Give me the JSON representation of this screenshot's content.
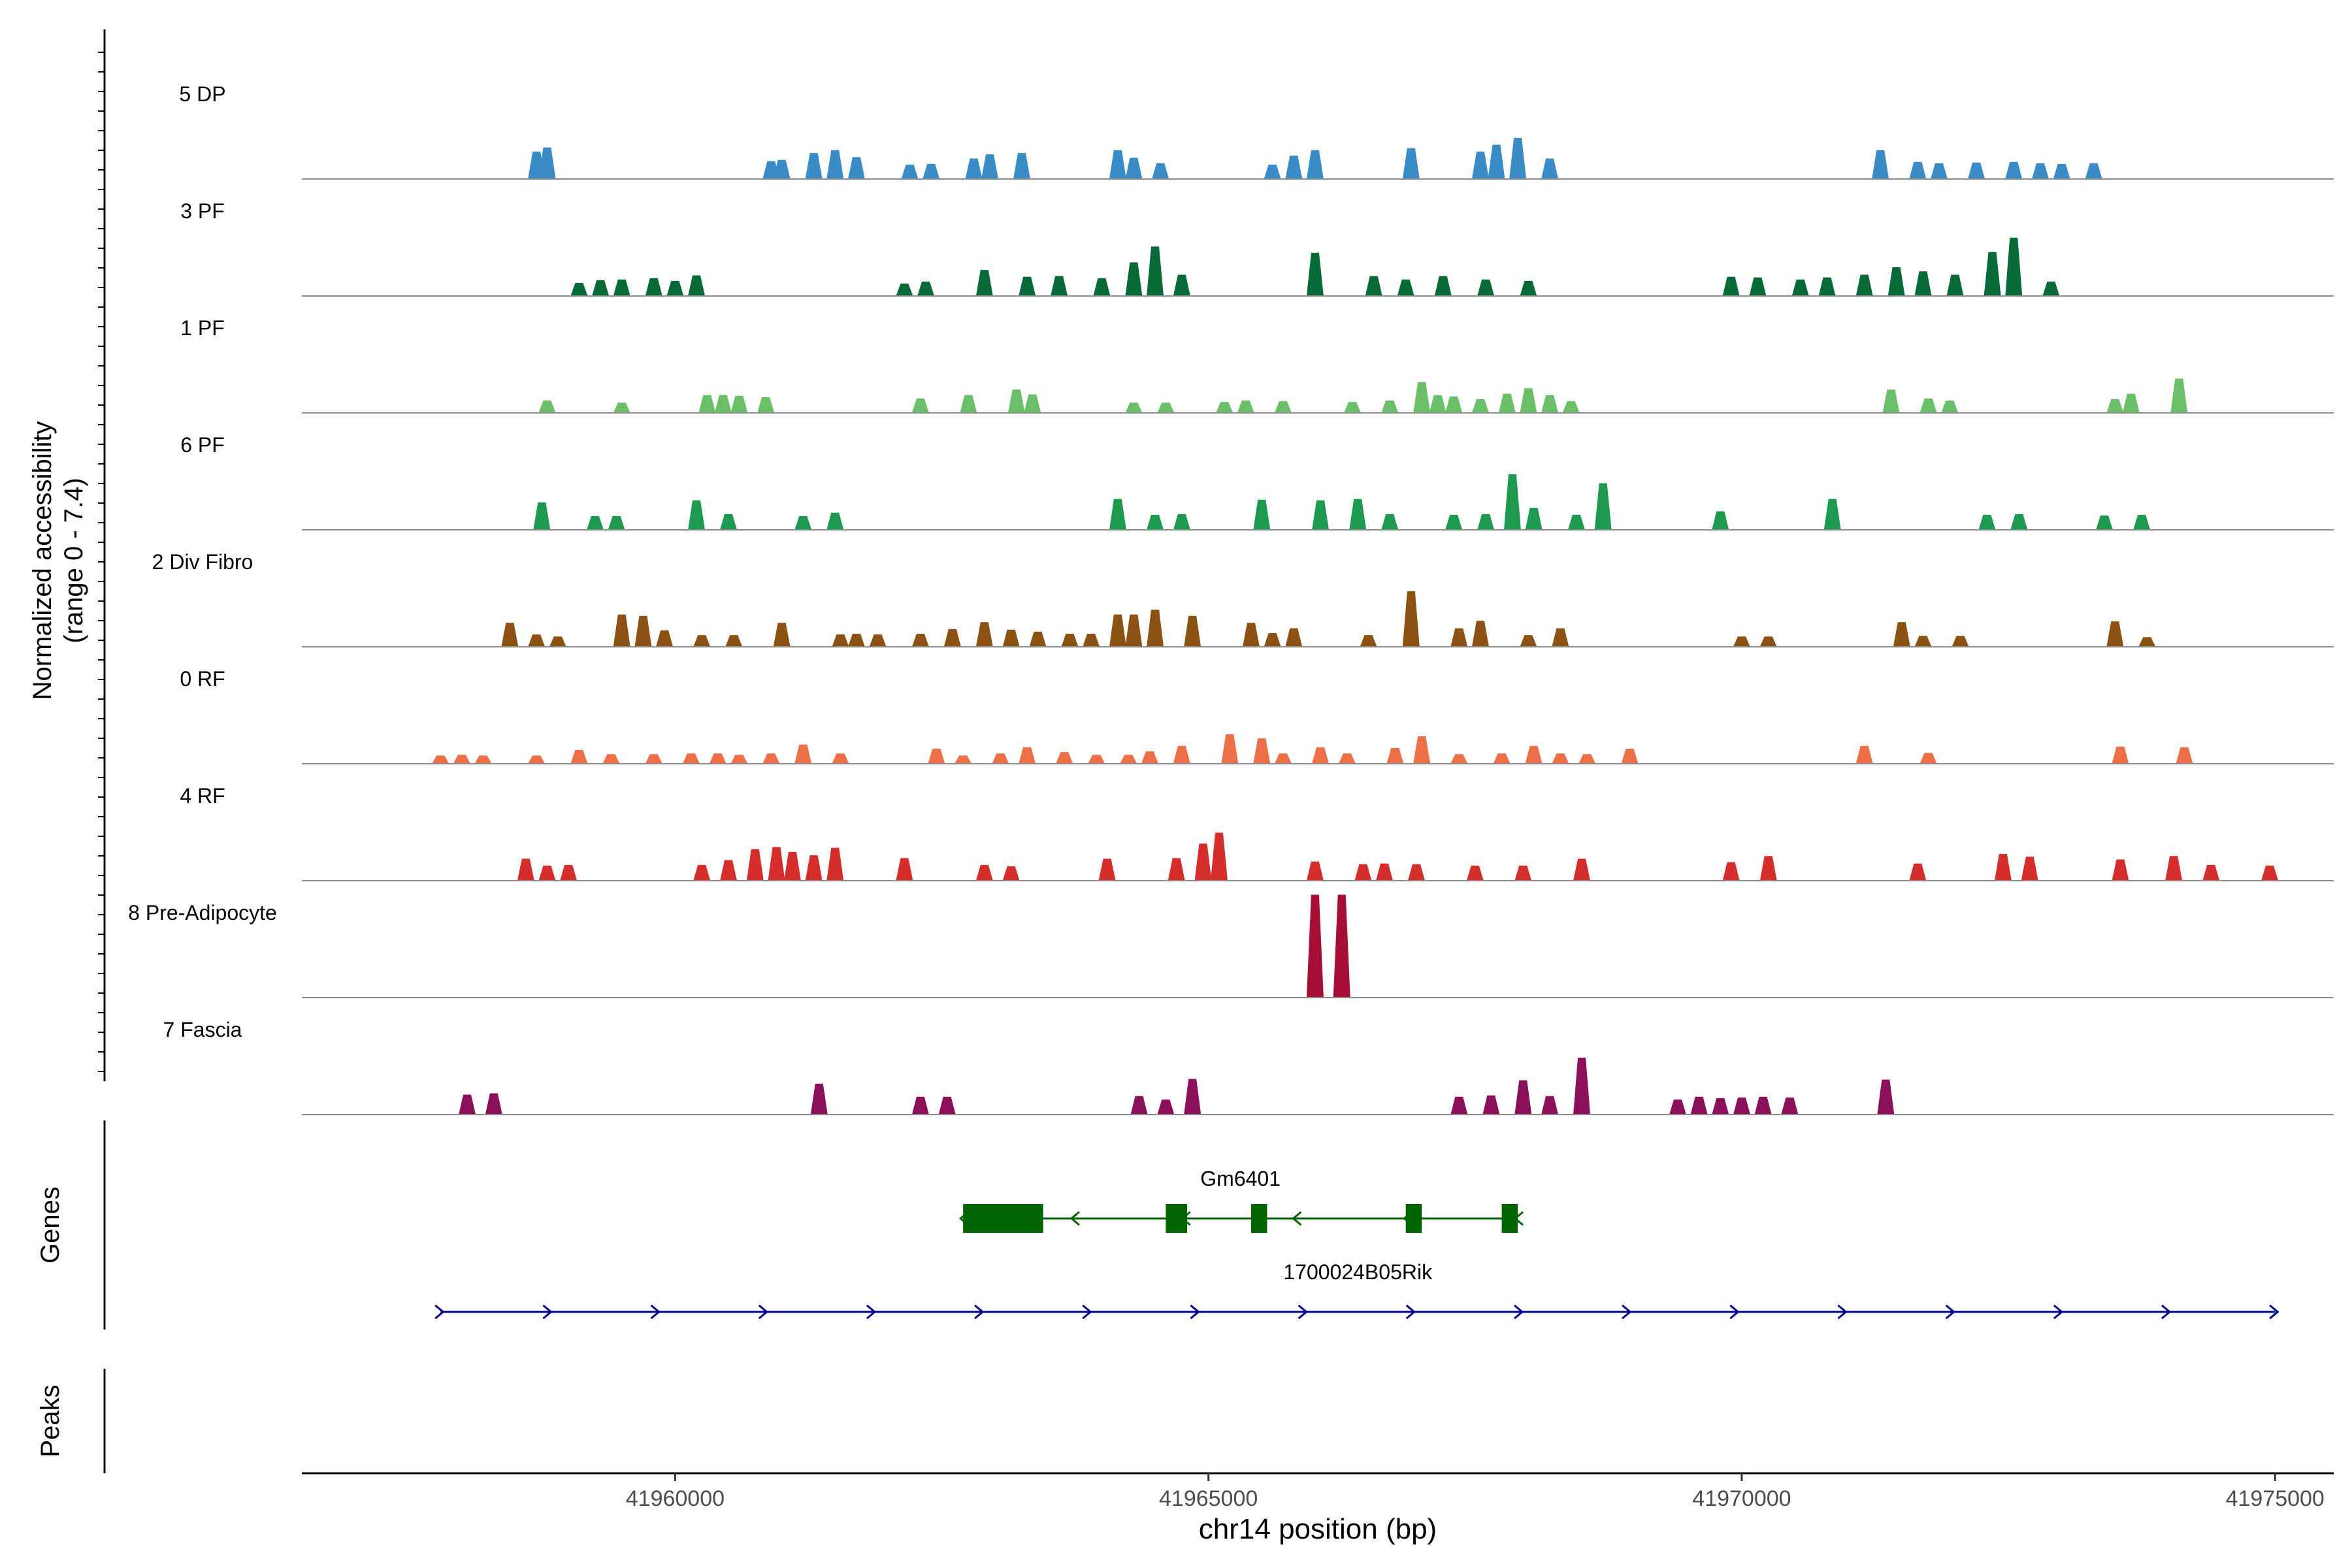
{
  "chart_data": {
    "type": "area",
    "title": "",
    "ylabel_line1": "Normalized accessibility",
    "ylabel_line2": "(range 0 - 7.4)",
    "y_range": [
      0,
      7.4
    ],
    "xlabel": "chr14 position (bp)",
    "x_range": [
      41956500,
      41975550
    ],
    "x_ticks": [
      41960000,
      41965000,
      41970000,
      41975000
    ],
    "x_tick_labels": [
      "41960000",
      "41965000",
      "41970000",
      "41975000"
    ],
    "tracks": [
      {
        "name": "5 DP",
        "color": "#3a8cc6",
        "peaks": [
          [
            41958700,
            4
          ],
          [
            41958800,
            4.6
          ],
          [
            41960900,
            2.6
          ],
          [
            41961000,
            2.8
          ],
          [
            41961300,
            3.8
          ],
          [
            41961500,
            4.2
          ],
          [
            41961700,
            3.2
          ],
          [
            41962200,
            2.1
          ],
          [
            41962400,
            2.2
          ],
          [
            41962800,
            3
          ],
          [
            41962950,
            3.6
          ],
          [
            41963250,
            3.8
          ],
          [
            41964150,
            4.2
          ],
          [
            41964300,
            3.1
          ],
          [
            41964550,
            2.3
          ],
          [
            41965600,
            2.1
          ],
          [
            41965800,
            3.4
          ],
          [
            41966000,
            4.2
          ],
          [
            41966900,
            4.5
          ],
          [
            41967550,
            4
          ],
          [
            41967700,
            5
          ],
          [
            41967900,
            6
          ],
          [
            41968200,
            3
          ],
          [
            41971300,
            4.2
          ],
          [
            41971650,
            2.5
          ],
          [
            41971850,
            2.3
          ],
          [
            41972200,
            2.4
          ],
          [
            41972550,
            2.5
          ],
          [
            41972800,
            2.3
          ],
          [
            41973000,
            2.2
          ],
          [
            41973300,
            2.3
          ]
        ]
      },
      {
        "name": "3 PF",
        "color": "#086a37",
        "peaks": [
          [
            41959100,
            1.9
          ],
          [
            41959300,
            2.3
          ],
          [
            41959500,
            2.4
          ],
          [
            41959800,
            2.6
          ],
          [
            41960000,
            2.2
          ],
          [
            41960200,
            3
          ],
          [
            41962150,
            1.8
          ],
          [
            41962350,
            2.1
          ],
          [
            41962900,
            3.8
          ],
          [
            41963300,
            2.8
          ],
          [
            41963600,
            2.9
          ],
          [
            41964000,
            2.6
          ],
          [
            41964300,
            4.9
          ],
          [
            41964500,
            7.2
          ],
          [
            41964750,
            3.1
          ],
          [
            41966000,
            6.3
          ],
          [
            41966550,
            2.9
          ],
          [
            41966850,
            2.4
          ],
          [
            41967200,
            2.9
          ],
          [
            41967600,
            2.4
          ],
          [
            41968000,
            2.2
          ],
          [
            41969900,
            2.8
          ],
          [
            41970150,
            2.7
          ],
          [
            41970550,
            2.4
          ],
          [
            41970800,
            2.7
          ],
          [
            41971150,
            3.1
          ],
          [
            41971450,
            4.2
          ],
          [
            41971700,
            3.6
          ],
          [
            41972000,
            3.1
          ],
          [
            41972350,
            6.4
          ],
          [
            41972550,
            8.5
          ],
          [
            41972900,
            2.1
          ]
        ]
      },
      {
        "name": "1 PF",
        "color": "#6bbf68",
        "peaks": [
          [
            41958800,
            1.8
          ],
          [
            41959500,
            1.5
          ],
          [
            41960300,
            2.6
          ],
          [
            41960450,
            2.6
          ],
          [
            41960600,
            2.5
          ],
          [
            41960850,
            2.3
          ],
          [
            41962300,
            2.1
          ],
          [
            41962750,
            2.6
          ],
          [
            41963200,
            3.4
          ],
          [
            41963350,
            2.7
          ],
          [
            41964300,
            1.5
          ],
          [
            41964600,
            1.5
          ],
          [
            41965150,
            1.6
          ],
          [
            41965350,
            1.8
          ],
          [
            41965700,
            1.7
          ],
          [
            41966350,
            1.6
          ],
          [
            41966700,
            1.8
          ],
          [
            41967000,
            4.5
          ],
          [
            41967150,
            2.6
          ],
          [
            41967300,
            2.4
          ],
          [
            41967550,
            2
          ],
          [
            41967800,
            2.8
          ],
          [
            41968000,
            3.6
          ],
          [
            41968200,
            2.6
          ],
          [
            41968400,
            1.7
          ],
          [
            41971400,
            3.4
          ],
          [
            41971750,
            2.1
          ],
          [
            41971950,
            1.8
          ],
          [
            41973500,
            2
          ],
          [
            41973650,
            2.8
          ],
          [
            41974100,
            5
          ]
        ]
      },
      {
        "name": "6 PF",
        "color": "#1e9a50",
        "peaks": [
          [
            41958750,
            4
          ],
          [
            41959250,
            2
          ],
          [
            41959450,
            2
          ],
          [
            41960200,
            4.3
          ],
          [
            41960500,
            2.3
          ],
          [
            41961200,
            2
          ],
          [
            41961500,
            2.5
          ],
          [
            41964150,
            4.5
          ],
          [
            41964500,
            2.2
          ],
          [
            41964750,
            2.3
          ],
          [
            41965500,
            4.4
          ],
          [
            41966050,
            4.3
          ],
          [
            41966400,
            4.5
          ],
          [
            41966700,
            2.3
          ],
          [
            41967300,
            2.2
          ],
          [
            41967600,
            2.3
          ],
          [
            41967850,
            8.1
          ],
          [
            41968050,
            3.2
          ],
          [
            41968450,
            2.2
          ],
          [
            41968700,
            6.8
          ],
          [
            41969800,
            2.7
          ],
          [
            41970850,
            4.5
          ],
          [
            41972300,
            2.2
          ],
          [
            41972600,
            2.3
          ],
          [
            41973400,
            2.1
          ],
          [
            41973750,
            2.2
          ]
        ]
      },
      {
        "name": "2 Div Fibro",
        "color": "#8b5213",
        "peaks": [
          [
            41958450,
            3.5
          ],
          [
            41958700,
            1.8
          ],
          [
            41958900,
            1.5
          ],
          [
            41959500,
            4.7
          ],
          [
            41959700,
            4.5
          ],
          [
            41959900,
            2.4
          ],
          [
            41960250,
            1.7
          ],
          [
            41960550,
            1.7
          ],
          [
            41961000,
            3.5
          ],
          [
            41961550,
            1.8
          ],
          [
            41961700,
            1.9
          ],
          [
            41961900,
            1.8
          ],
          [
            41962300,
            1.9
          ],
          [
            41962600,
            2.6
          ],
          [
            41962900,
            3.6
          ],
          [
            41963150,
            2.5
          ],
          [
            41963400,
            2.2
          ],
          [
            41963700,
            1.9
          ],
          [
            41963900,
            1.9
          ],
          [
            41964150,
            4.7
          ],
          [
            41964300,
            4.7
          ],
          [
            41964500,
            5.4
          ],
          [
            41964850,
            4.5
          ],
          [
            41965400,
            3.5
          ],
          [
            41965600,
            2
          ],
          [
            41965800,
            2.7
          ],
          [
            41966500,
            1.7
          ],
          [
            41966900,
            8.1
          ],
          [
            41967350,
            2.7
          ],
          [
            41967550,
            3.8
          ],
          [
            41968000,
            1.7
          ],
          [
            41968300,
            2.7
          ],
          [
            41970000,
            1.5
          ],
          [
            41970250,
            1.5
          ],
          [
            41971500,
            3.6
          ],
          [
            41971700,
            1.6
          ],
          [
            41972050,
            1.6
          ],
          [
            41973500,
            3.7
          ],
          [
            41973800,
            1.4
          ]
        ]
      },
      {
        "name": "0 RF",
        "color": "#ec6f47",
        "peaks": [
          [
            41957800,
            1.2
          ],
          [
            41958000,
            1.3
          ],
          [
            41958200,
            1.2
          ],
          [
            41958700,
            1.2
          ],
          [
            41959100,
            2
          ],
          [
            41959400,
            1.4
          ],
          [
            41959800,
            1.4
          ],
          [
            41960150,
            1.5
          ],
          [
            41960400,
            1.5
          ],
          [
            41960600,
            1.3
          ],
          [
            41960900,
            1.5
          ],
          [
            41961200,
            2.8
          ],
          [
            41961550,
            1.5
          ],
          [
            41962450,
            2.2
          ],
          [
            41962700,
            1.2
          ],
          [
            41963050,
            1.5
          ],
          [
            41963300,
            2.4
          ],
          [
            41963650,
            1.7
          ],
          [
            41963950,
            1.3
          ],
          [
            41964250,
            1.3
          ],
          [
            41964450,
            1.8
          ],
          [
            41964750,
            2.6
          ],
          [
            41965200,
            4.3
          ],
          [
            41965500,
            3.7
          ],
          [
            41965700,
            1.5
          ],
          [
            41966050,
            2.4
          ],
          [
            41966300,
            1.5
          ],
          [
            41966750,
            2.3
          ],
          [
            41967000,
            4
          ],
          [
            41967350,
            1.4
          ],
          [
            41967750,
            1.5
          ],
          [
            41968050,
            2.6
          ],
          [
            41968300,
            1.5
          ],
          [
            41968550,
            1.4
          ],
          [
            41968950,
            2.2
          ],
          [
            41971150,
            2.6
          ],
          [
            41971750,
            1.6
          ],
          [
            41973550,
            2.5
          ],
          [
            41974150,
            2.4
          ]
        ]
      },
      {
        "name": "4 RF",
        "color": "#d52c2c",
        "peaks": [
          [
            41958600,
            3.2
          ],
          [
            41958800,
            2.2
          ],
          [
            41959000,
            2.3
          ],
          [
            41960250,
            2.3
          ],
          [
            41960500,
            3
          ],
          [
            41960750,
            4.6
          ],
          [
            41960950,
            4.9
          ],
          [
            41961100,
            4.2
          ],
          [
            41961300,
            3.7
          ],
          [
            41961500,
            4.8
          ],
          [
            41962150,
            3.3
          ],
          [
            41962900,
            2.3
          ],
          [
            41963150,
            2.1
          ],
          [
            41964050,
            3.2
          ],
          [
            41964700,
            3.3
          ],
          [
            41964950,
            5.4
          ],
          [
            41965100,
            7
          ],
          [
            41966000,
            2.8
          ],
          [
            41966450,
            2.4
          ],
          [
            41966650,
            2.5
          ],
          [
            41966950,
            2.4
          ],
          [
            41967500,
            2.2
          ],
          [
            41967950,
            2.2
          ],
          [
            41968500,
            3.2
          ],
          [
            41969900,
            2.7
          ],
          [
            41970250,
            3.6
          ],
          [
            41971650,
            2.5
          ],
          [
            41972450,
            3.9
          ],
          [
            41972700,
            3.5
          ],
          [
            41973550,
            3.1
          ],
          [
            41974050,
            3.6
          ],
          [
            41974400,
            2.3
          ],
          [
            41974950,
            2.2
          ]
        ]
      },
      {
        "name": "8 Pre-Adipocyte",
        "color": "#a60f35",
        "peaks": [
          [
            41966000,
            15
          ],
          [
            41966250,
            15
          ]
        ]
      },
      {
        "name": "7 Fascia",
        "color": "#8b1059",
        "peaks": [
          [
            41958050,
            2.9
          ],
          [
            41958300,
            3.1
          ],
          [
            41961350,
            4.5
          ],
          [
            41962300,
            2.6
          ],
          [
            41962550,
            2.6
          ],
          [
            41964350,
            2.7
          ],
          [
            41964600,
            2.2
          ],
          [
            41964850,
            5.2
          ],
          [
            41967350,
            2.6
          ],
          [
            41967650,
            2.8
          ],
          [
            41967950,
            5
          ],
          [
            41968200,
            2.7
          ],
          [
            41968500,
            8.3
          ],
          [
            41969400,
            2.2
          ],
          [
            41969600,
            2.6
          ],
          [
            41969800,
            2.4
          ],
          [
            41970000,
            2.5
          ],
          [
            41970200,
            2.6
          ],
          [
            41970450,
            2.5
          ],
          [
            41971350,
            5.1
          ]
        ]
      }
    ],
    "genes_label": "Genes",
    "genes": [
      {
        "name": "Gm6401",
        "strand": "-",
        "color": "#006400",
        "start": 41962700,
        "end": 41967900,
        "exons": [
          [
            41962700,
            41963450
          ],
          [
            41964600,
            41964800
          ],
          [
            41965400,
            41965550
          ],
          [
            41966850,
            41967000
          ],
          [
            41967750,
            41967900
          ]
        ]
      },
      {
        "name": "1700024B05Rik",
        "strand": "+",
        "color": "#00008b",
        "start": 41957800,
        "end": 41975000,
        "exons": []
      }
    ],
    "peaks_label": "Peaks"
  }
}
